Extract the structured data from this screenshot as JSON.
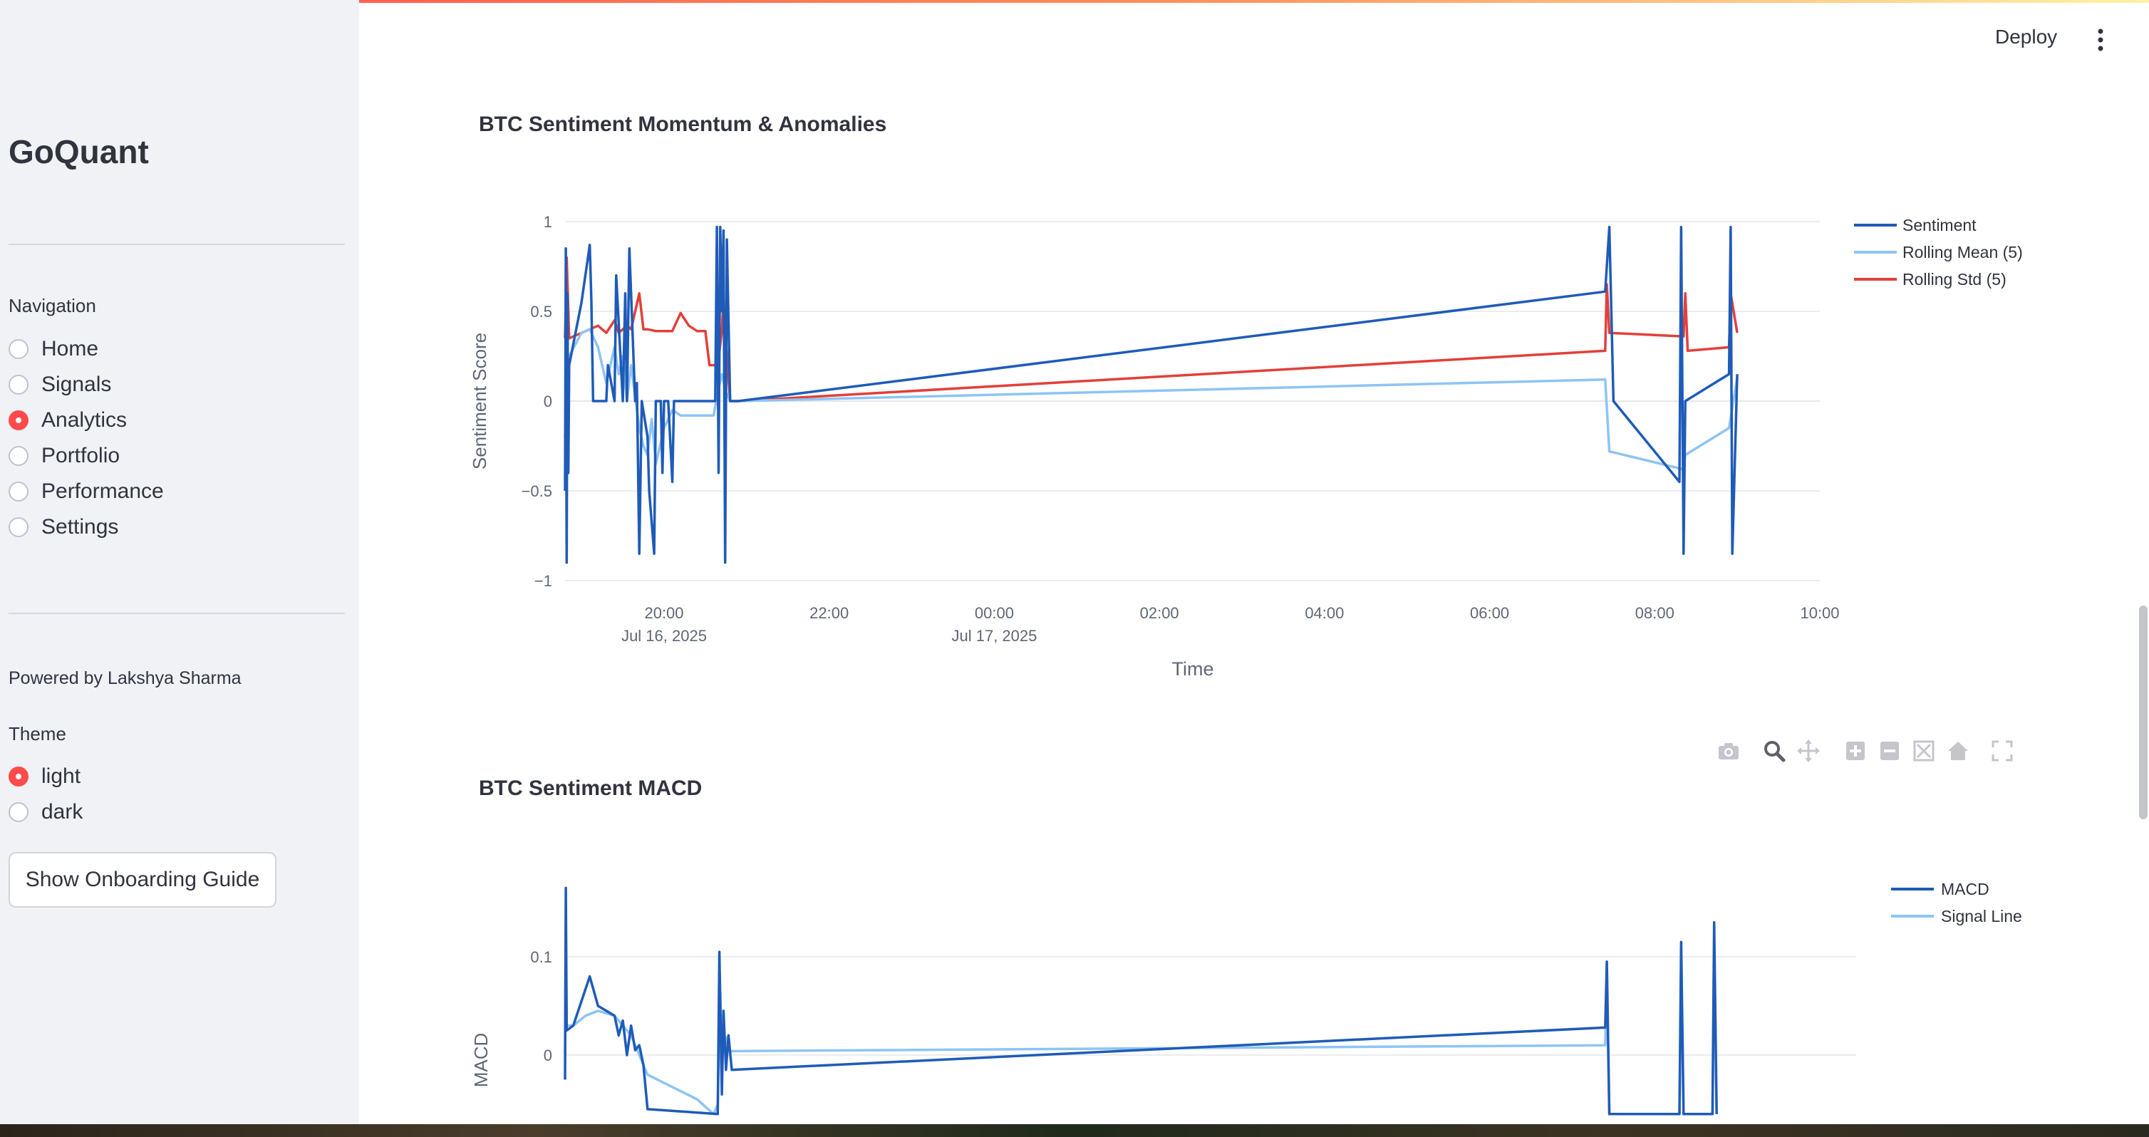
{
  "sidebar": {
    "title": "GoQuant",
    "nav_label": "Navigation",
    "nav_items": [
      "Home",
      "Signals",
      "Analytics",
      "Portfolio",
      "Performance",
      "Settings"
    ],
    "nav_selected": "Analytics",
    "powered_by": "Powered by Lakshya Sharma",
    "theme_label": "Theme",
    "theme_options": [
      "light",
      "dark"
    ],
    "theme_selected": "light",
    "onboarding_button": "Show Onboarding Guide"
  },
  "header": {
    "deploy_label": "Deploy",
    "menu_icon": "kebab-menu-icon"
  },
  "modebar": {
    "icons": [
      "camera-icon",
      "zoom-icon",
      "pan-icon",
      "zoom-in-icon",
      "zoom-out-icon",
      "autoscale-icon",
      "reset-axes-icon",
      "fullscreen-icon"
    ]
  },
  "colors": {
    "dark_blue": "#1f5bb8",
    "light_blue": "#8ec4f4",
    "red": "#e2403a",
    "accent": "#ff4b4b"
  },
  "chart_data": [
    {
      "type": "line",
      "title": "BTC Sentiment Momentum & Anomalies",
      "xlabel": "Time",
      "ylabel": "Sentiment Score",
      "ylim": [
        -1,
        1
      ],
      "yticks": [
        "1",
        "0.5",
        "0",
        "−0.5",
        "−1"
      ],
      "xticks": [
        {
          "line1": "20:00",
          "line2": "Jul 16, 2025"
        },
        {
          "line1": "22:00",
          "line2": ""
        },
        {
          "line1": "00:00",
          "line2": "Jul 17, 2025"
        },
        {
          "line1": "02:00",
          "line2": ""
        },
        {
          "line1": "04:00",
          "line2": ""
        },
        {
          "line1": "06:00",
          "line2": ""
        },
        {
          "line1": "08:00",
          "line2": ""
        },
        {
          "line1": "10:00",
          "line2": ""
        }
      ],
      "x_range_hours": [
        -1.2,
        14.0
      ],
      "legend_position": "top-right",
      "series": [
        {
          "name": "Sentiment",
          "color": "#1f5bb8",
          "x": [
            -1.2,
            -1.19,
            -1.18,
            -1.17,
            -1.16,
            -1.15,
            -1.0,
            -0.9,
            -0.88,
            -0.86,
            -0.7,
            -0.68,
            -0.6,
            -0.58,
            -0.5,
            -0.47,
            -0.45,
            -0.42,
            -0.35,
            -0.33,
            -0.3,
            -0.27,
            -0.2,
            -0.18,
            -0.12,
            -0.1,
            -0.04,
            -0.02,
            0.0,
            0.05,
            0.1,
            0.12,
            0.2,
            0.25,
            0.3,
            0.35,
            0.4,
            0.45,
            0.62,
            0.64,
            0.66,
            0.68,
            0.7,
            0.72,
            0.74,
            0.76,
            0.8,
            0.9,
            11.4,
            11.45,
            11.5,
            12.3,
            12.32,
            12.35,
            12.37,
            12.9,
            12.92,
            12.94,
            13.0
          ],
          "y": [
            -0.5,
            0.85,
            -0.9,
            0.6,
            -0.4,
            0.2,
            0.55,
            0.87,
            0.55,
            0.0,
            0.0,
            0.2,
            0.0,
            0.7,
            0.0,
            0.6,
            0.0,
            0.85,
            0.0,
            0.1,
            -0.85,
            0.0,
            -0.2,
            -0.5,
            -0.85,
            0.0,
            0.0,
            -0.4,
            0.0,
            0.0,
            -0.45,
            0.0,
            0.0,
            0.0,
            0.0,
            0.0,
            0.0,
            0.0,
            0.0,
            0.97,
            -0.4,
            0.97,
            0.5,
            0.95,
            -0.9,
            0.9,
            0.0,
            0.0,
            0.61,
            0.97,
            0.0,
            -0.45,
            0.97,
            -0.85,
            0.0,
            0.15,
            0.97,
            -0.85,
            0.15
          ]
        },
        {
          "name": "Rolling Mean (5)",
          "color": "#8ec4f4",
          "x": [
            -1.2,
            -1.15,
            -1.0,
            -0.9,
            -0.8,
            -0.7,
            -0.6,
            -0.55,
            -0.5,
            -0.45,
            -0.4,
            -0.3,
            -0.25,
            -0.2,
            -0.15,
            -0.1,
            0.0,
            0.1,
            0.2,
            0.4,
            0.6,
            0.65,
            0.7,
            0.75,
            0.8,
            0.9,
            11.4,
            11.45,
            12.35,
            12.37,
            12.9,
            13.0
          ],
          "y": [
            -0.2,
            0.25,
            0.38,
            0.4,
            0.3,
            0.1,
            0.3,
            0.15,
            0.25,
            0.0,
            0.2,
            -0.15,
            -0.25,
            -0.3,
            -0.1,
            -0.35,
            -0.15,
            -0.05,
            -0.08,
            -0.08,
            -0.08,
            0.05,
            0.15,
            0.05,
            0.0,
            0.0,
            0.12,
            -0.28,
            -0.38,
            -0.3,
            -0.15,
            0.13
          ]
        },
        {
          "name": "Rolling Std (5)",
          "color": "#e2403a",
          "x": [
            -1.2,
            -1.18,
            -1.15,
            -0.8,
            -0.7,
            -0.6,
            -0.55,
            -0.45,
            -0.4,
            -0.3,
            -0.25,
            -0.2,
            -0.1,
            0.1,
            0.2,
            0.3,
            0.4,
            0.5,
            0.55,
            0.6,
            0.65,
            0.7,
            0.72,
            0.74,
            0.8,
            0.9,
            11.4,
            11.42,
            11.45,
            12.35,
            12.37,
            12.4,
            12.9,
            12.92,
            13.0
          ],
          "y": [
            0.35,
            0.8,
            0.35,
            0.42,
            0.38,
            0.45,
            0.38,
            0.42,
            0.4,
            0.6,
            0.4,
            0.4,
            0.39,
            0.39,
            0.49,
            0.42,
            0.39,
            0.39,
            0.2,
            0.2,
            0.2,
            0.39,
            0.6,
            0.38,
            0.0,
            0.0,
            0.28,
            0.65,
            0.38,
            0.36,
            0.6,
            0.28,
            0.3,
            0.6,
            0.38
          ]
        }
      ]
    },
    {
      "type": "line",
      "title": "BTC Sentiment MACD",
      "xlabel": "",
      "ylabel": "MACD",
      "yticks": [
        "0.1",
        "0"
      ],
      "x_range_hours": [
        -1.2,
        14.0
      ],
      "legend_position": "top-right",
      "series": [
        {
          "name": "MACD",
          "color": "#1f5bb8",
          "x": [
            -1.2,
            -1.19,
            -1.18,
            -1.1,
            -0.9,
            -0.8,
            -0.6,
            -0.55,
            -0.5,
            -0.45,
            -0.4,
            -0.35,
            -0.3,
            -0.25,
            -0.2,
            0.65,
            0.67,
            0.7,
            0.72,
            0.75,
            0.78,
            0.82,
            11.4,
            11.42,
            11.45,
            12.3,
            12.32,
            12.35,
            12.7,
            12.72,
            12.75
          ],
          "y": [
            -0.025,
            0.17,
            0.025,
            0.03,
            0.08,
            0.05,
            0.04,
            0.02,
            0.035,
            0.0,
            0.03,
            0.005,
            0.01,
            -0.01,
            -0.055,
            -0.06,
            0.105,
            -0.04,
            0.045,
            -0.015,
            0.02,
            -0.015,
            0.028,
            0.095,
            -0.06,
            -0.06,
            0.115,
            -0.06,
            -0.06,
            0.135,
            -0.06
          ]
        },
        {
          "name": "Signal Line",
          "color": "#8ec4f4",
          "x": [
            -1.2,
            -1.19,
            -1.18,
            -1.1,
            -0.95,
            -0.8,
            -0.6,
            -0.5,
            -0.4,
            -0.3,
            -0.2,
            0.4,
            0.6,
            0.65,
            0.68,
            0.7,
            0.75,
            0.78,
            11.4,
            11.42,
            11.45,
            12.3,
            12.32,
            12.35,
            12.7,
            12.72,
            12.75
          ],
          "y": [
            0.0,
            0.14,
            0.03,
            0.03,
            0.04,
            0.045,
            0.04,
            0.03,
            0.02,
            0.0,
            -0.02,
            -0.045,
            -0.06,
            -0.05,
            0.065,
            0.0,
            0.018,
            0.004,
            0.01,
            0.075,
            -0.06,
            -0.06,
            0.095,
            -0.06,
            -0.06,
            0.11,
            -0.06
          ]
        }
      ]
    }
  ]
}
